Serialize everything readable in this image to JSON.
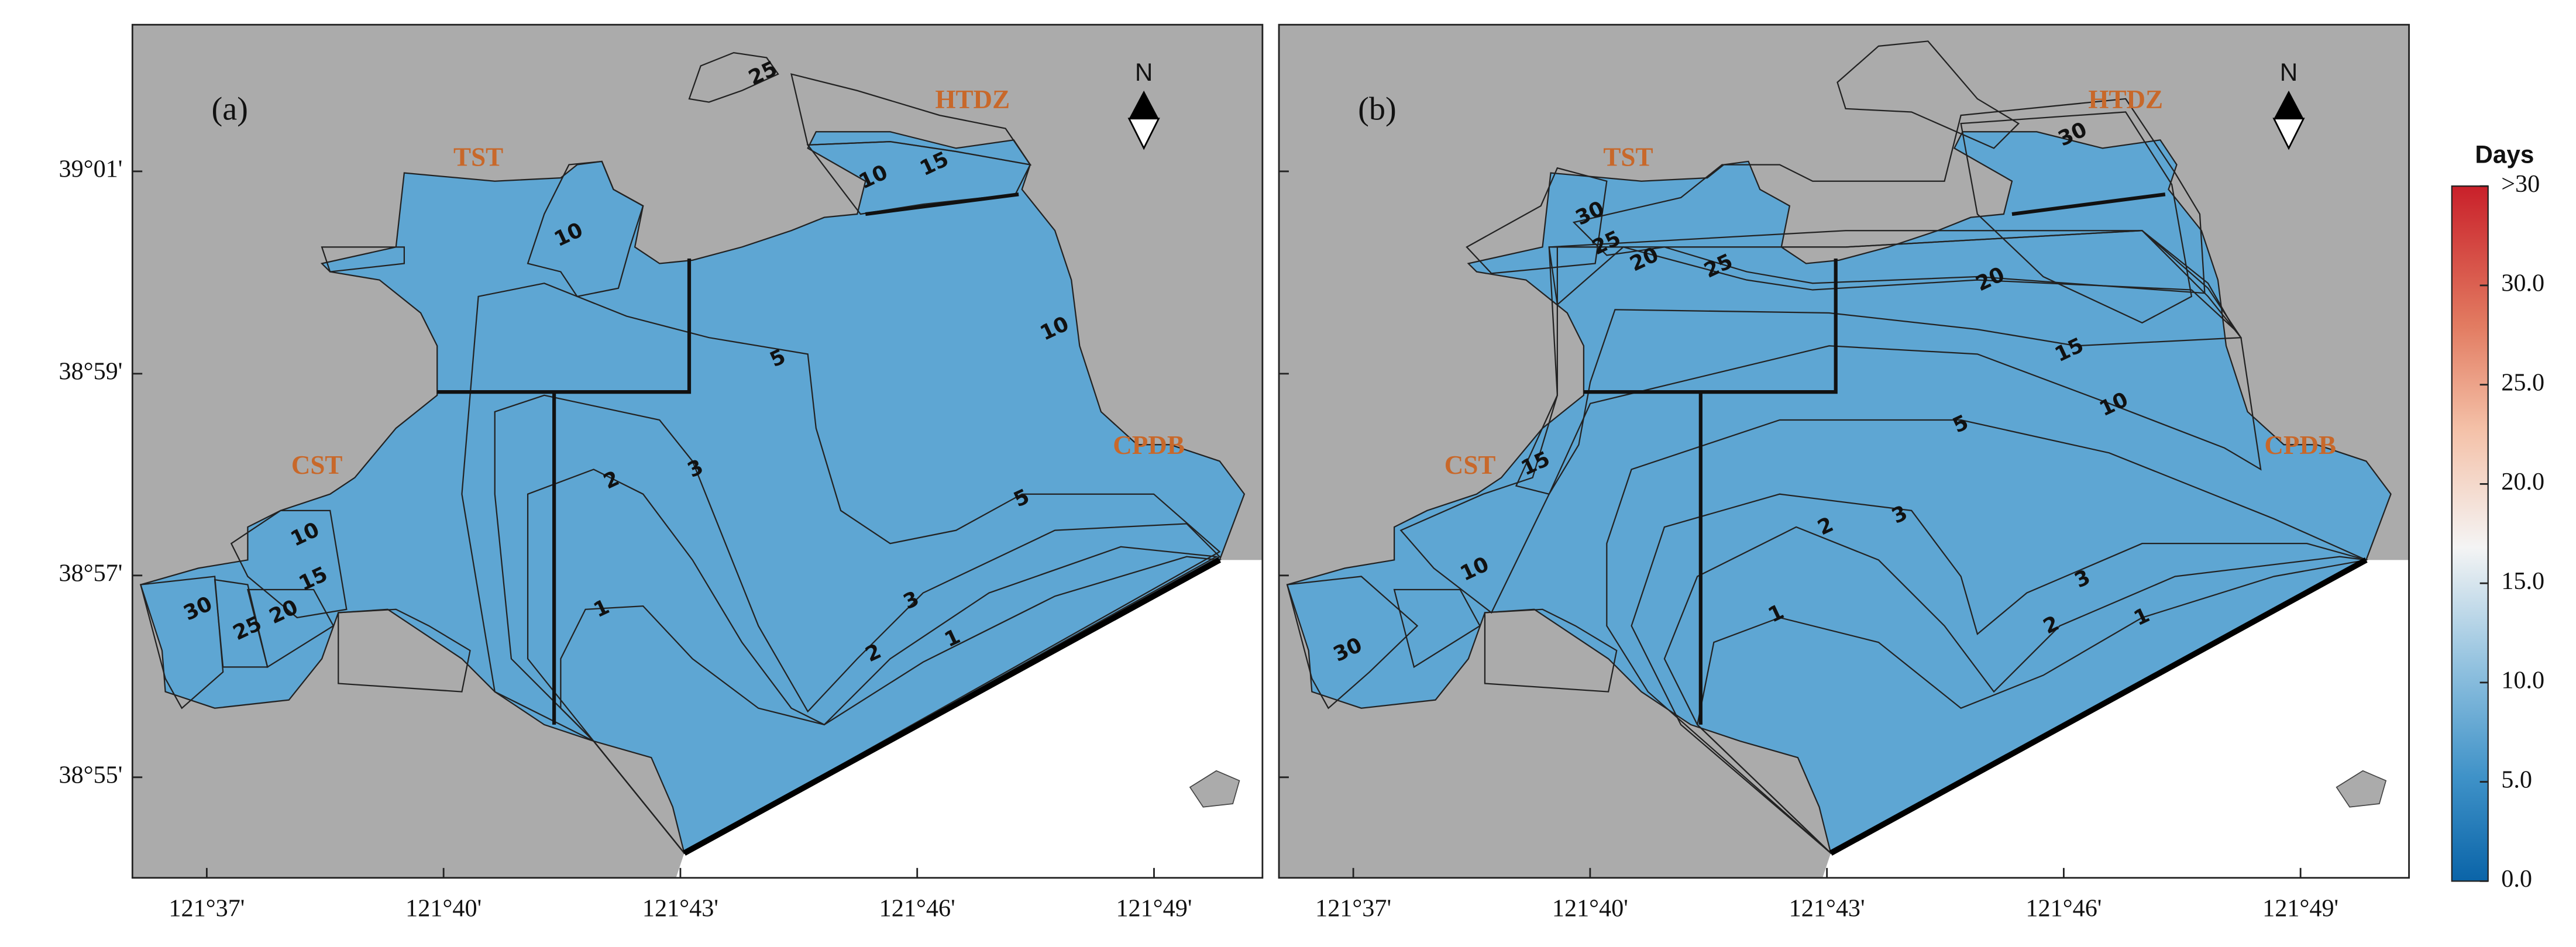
{
  "panels": [
    {
      "label": "(a)",
      "north": "N",
      "place_labels": [
        "TST",
        "HTDZ",
        "CST",
        "CPDB"
      ],
      "contour_labels": [
        25,
        10,
        15,
        10,
        5,
        3,
        2,
        1,
        10,
        5,
        3,
        2,
        1,
        10,
        15,
        20,
        25,
        30
      ]
    },
    {
      "label": "(b)",
      "north": "N",
      "place_labels": [
        "TST",
        "HTDZ",
        "CST",
        "CPDB"
      ],
      "contour_labels": [
        30,
        30,
        25,
        20,
        25,
        20,
        15,
        10,
        5,
        3,
        2,
        1,
        3,
        2,
        1,
        15,
        10,
        30
      ]
    }
  ],
  "lonlim": [
    121.601,
    121.8396
  ],
  "latlim": [
    38.9001,
    39.0409
  ],
  "lon_ticks": [
    {
      "value": 121.6167,
      "label": "121°37'"
    },
    {
      "value": 121.6667,
      "label": "121°40'"
    },
    {
      "value": 121.7167,
      "label": "121°43'"
    },
    {
      "value": 121.7667,
      "label": "121°46'"
    },
    {
      "value": 121.8167,
      "label": "121°49'"
    }
  ],
  "lat_ticks": [
    {
      "value": 39.0167,
      "label": "39°01'"
    },
    {
      "value": 38.9833,
      "label": "38°59'"
    },
    {
      "value": 38.95,
      "label": "38°57'"
    },
    {
      "value": 38.9167,
      "label": "38°55'"
    }
  ],
  "colorbar": {
    "title": "Days",
    "lim": [
      0,
      35
    ],
    "ticks": [
      {
        "value": 0,
        "label": "0.0"
      },
      {
        "value": 5,
        "label": "5.0"
      },
      {
        "value": 10,
        "label": "10.0"
      },
      {
        "value": 15,
        "label": "15.0"
      },
      {
        "value": 20,
        "label": "20.0"
      },
      {
        "value": 25,
        "label": "25.0"
      },
      {
        "value": 30,
        "label": "30.0"
      },
      {
        "value": 35,
        "label": ">30"
      }
    ]
  }
}
